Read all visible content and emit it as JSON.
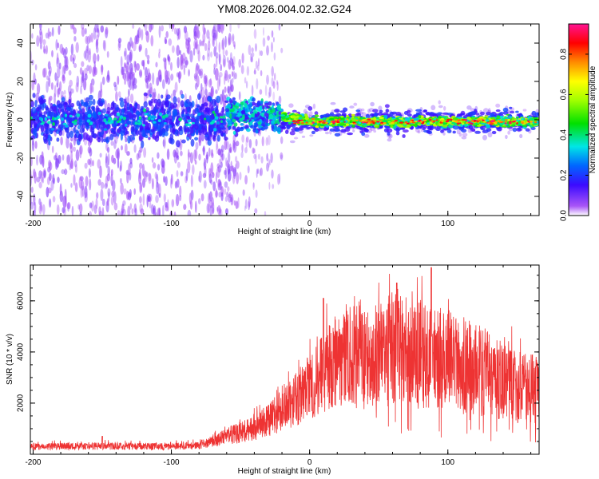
{
  "title": "YM08.2026.004.02.32.G24",
  "chart_data": [
    {
      "type": "heatmap",
      "title": "YM08.2026.004.02.32.G24",
      "xlabel": "Height of straight line (km)",
      "ylabel": "Frequency (Hz)",
      "xlim": [
        -202,
        166
      ],
      "ylim": [
        -50,
        50
      ],
      "xticks": [
        -200,
        -100,
        0,
        100
      ],
      "yticks": [
        -40,
        -20,
        0,
        20,
        40
      ],
      "colorbar": {
        "label": "Normalized spectral amplitude",
        "range": [
          0,
          0.95
        ],
        "ticks": [
          0.0,
          0.2,
          0.4,
          0.6,
          0.8
        ],
        "colormap": "rainbow (violet-blue-cyan-green-yellow-red-magenta)"
      },
      "description_regions": [
        {
          "x_range": [
            -202,
            -60
          ],
          "center_freq": 0,
          "half_width": 8,
          "level": "low (0.05-0.25)",
          "scatter": "heavy, up to +/-50 Hz"
        },
        {
          "x_range": [
            -60,
            -20
          ],
          "center_freq": 2,
          "half_width": 7,
          "level": "0.1-0.4",
          "scatter": "moderate"
        },
        {
          "x_range": [
            -20,
            166
          ],
          "center_freq": -1,
          "half_width": 3,
          "level": "0.3-0.95",
          "scatter": "low"
        }
      ]
    },
    {
      "type": "line",
      "xlabel": "Height of straight line (km)",
      "ylabel": "SNR (10 * v/v)",
      "xlim": [
        -202,
        166
      ],
      "ylim": [
        0,
        7400
      ],
      "xticks": [
        -200,
        -100,
        0,
        100
      ],
      "yticks": [
        2000,
        4000,
        6000
      ],
      "color": "#ee3333",
      "envelope": {
        "x": [
          -202,
          -150,
          -100,
          -80,
          -70,
          -60,
          -45,
          -30,
          -15,
          0,
          10,
          20,
          30,
          40,
          50,
          60,
          70,
          80,
          90,
          100,
          110,
          120,
          130,
          140,
          150,
          166
        ],
        "y": [
          300,
          320,
          300,
          350,
          500,
          700,
          950,
          1300,
          1900,
          2600,
          3200,
          3700,
          4050,
          3850,
          3900,
          4100,
          4000,
          3950,
          3750,
          3650,
          3500,
          3300,
          3150,
          3000,
          2750,
          2500
        ]
      },
      "peaks": [
        {
          "x": -150,
          "y": 700
        },
        {
          "x": 10,
          "y": 6100
        },
        {
          "x": 63,
          "y": 6700
        },
        {
          "x": 88,
          "y": 7300
        }
      ]
    }
  ]
}
